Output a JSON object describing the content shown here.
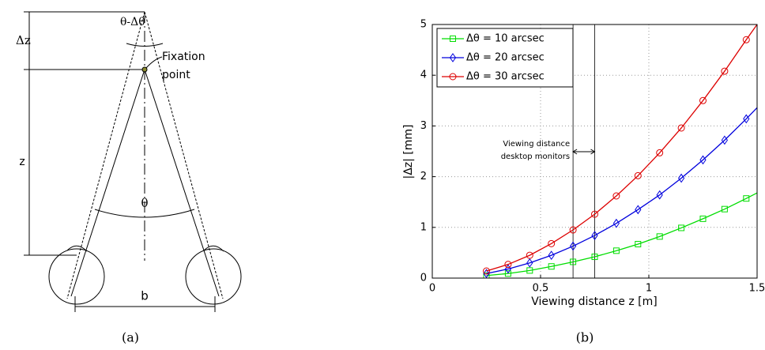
{
  "diagram": {
    "delta_z": "Δz",
    "angle_top": "θ-Δθ",
    "fixation": [
      "Fixation",
      "point"
    ],
    "z": "z",
    "theta": "θ",
    "b": "b",
    "caption": "(a)"
  },
  "chart_data": {
    "type": "line",
    "caption": "(b)",
    "x_label": "Viewing distance z [m]",
    "y_label": "|Δz| [mm]",
    "x": [
      0.25,
      0.35,
      0.45,
      0.55,
      0.65,
      0.75,
      0.85,
      0.95,
      1.05,
      1.15,
      1.25,
      1.35,
      1.45,
      1.5
    ],
    "series": [
      {
        "name": "Δθ = 10 arcsec",
        "color": "#00dd00",
        "marker": "square",
        "values": [
          0.05,
          0.09,
          0.15,
          0.23,
          0.32,
          0.42,
          0.54,
          0.67,
          0.82,
          0.99,
          1.17,
          1.36,
          1.57,
          1.68
        ]
      },
      {
        "name": "Δθ = 20 arcsec",
        "color": "#0000dd",
        "marker": "diamond",
        "values": [
          0.09,
          0.18,
          0.3,
          0.45,
          0.63,
          0.84,
          1.08,
          1.35,
          1.64,
          1.97,
          2.33,
          2.72,
          3.14,
          3.36
        ]
      },
      {
        "name": "Δθ = 30 arcsec",
        "color": "#dd0000",
        "marker": "circle",
        "values": [
          0.14,
          0.27,
          0.45,
          0.68,
          0.95,
          1.26,
          1.62,
          2.02,
          2.47,
          2.96,
          3.5,
          4.08,
          4.7,
          5
        ]
      }
    ],
    "xlim": [
      0,
      1.5
    ],
    "ylim": [
      0,
      5
    ],
    "xticks": [
      0,
      0.5,
      1,
      1.5
    ],
    "yticks": [
      0,
      1,
      2,
      3,
      4,
      5
    ],
    "grid": true,
    "legend": "upper-left",
    "vlines": [
      0.65,
      0.75
    ],
    "annotation": [
      "Viewing distance",
      "desktop monitors"
    ]
  }
}
